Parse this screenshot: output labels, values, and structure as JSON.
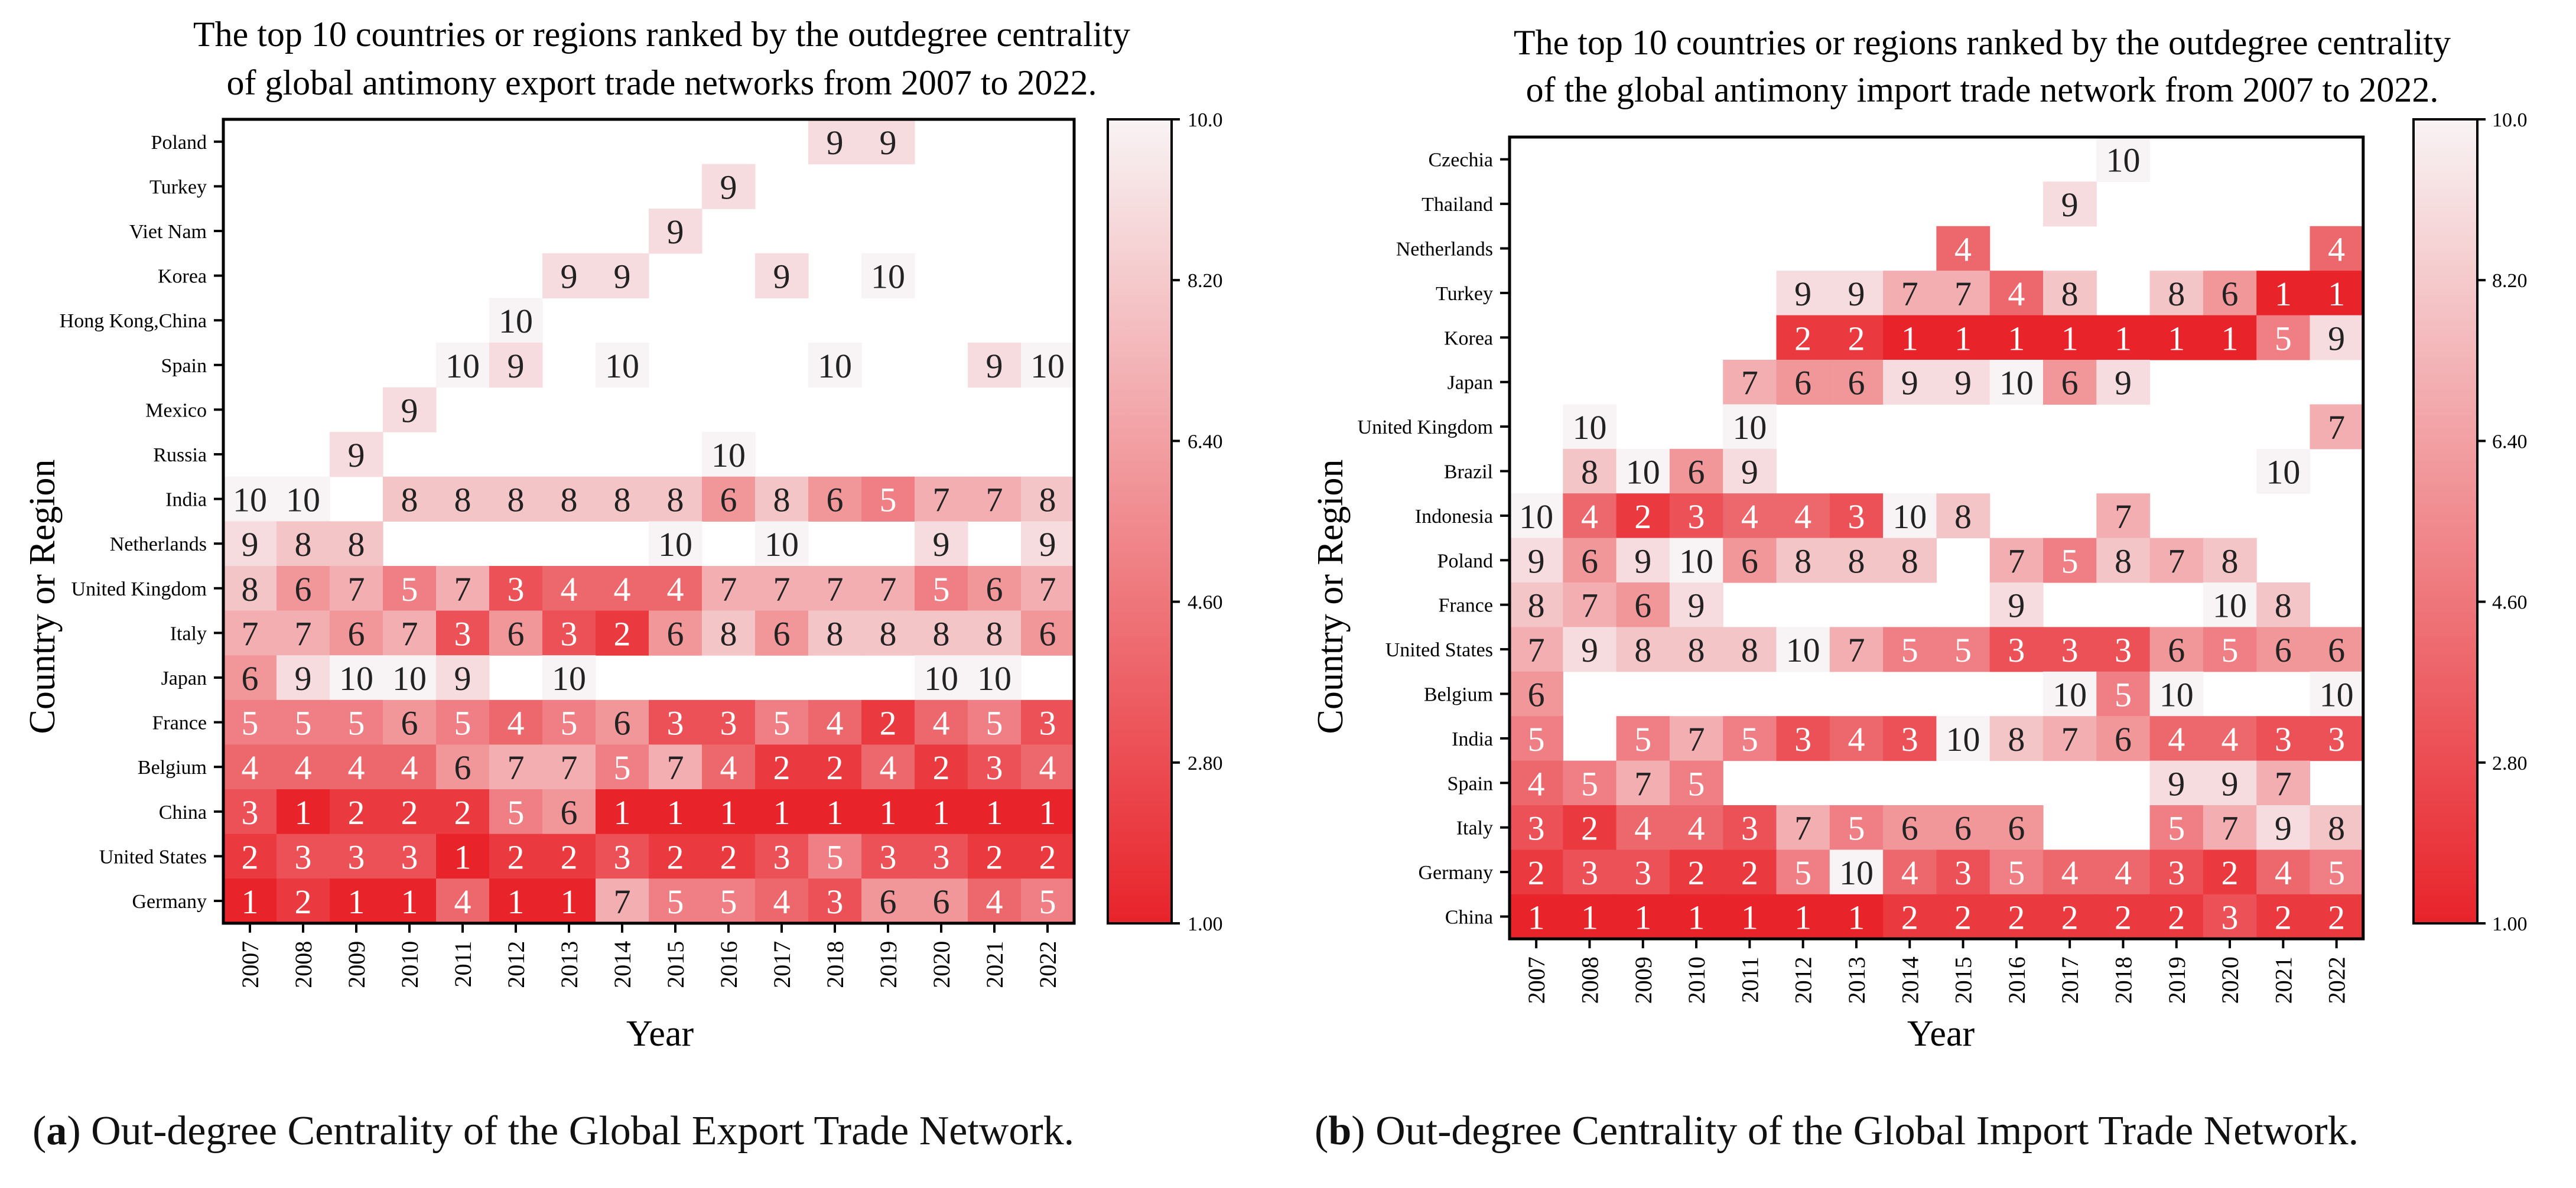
{
  "chart_data": [
    {
      "id": "export",
      "type": "heatmap",
      "title_lines": [
        "The top 10 countries or regions ranked by the outdegree centrality",
        "of global antimony export trade networks from 2007 to 2022."
      ],
      "xlabel": "Year",
      "ylabel": "Country or Region",
      "x": [
        "2007",
        "2008",
        "2009",
        "2010",
        "2011",
        "2012",
        "2013",
        "2014",
        "2015",
        "2016",
        "2017",
        "2018",
        "2019",
        "2020",
        "2021",
        "2022"
      ],
      "y": [
        "Poland",
        "Turkey",
        "Viet Nam",
        "Korea",
        "Hong Kong,China",
        "Spain",
        "Mexico",
        "Russia",
        "India",
        "Netherlands",
        "United Kingdom",
        "Italy",
        "Japan",
        "France",
        "Belgium",
        "China",
        "United States",
        "Germany"
      ],
      "values": [
        [
          null,
          null,
          null,
          null,
          null,
          null,
          null,
          null,
          null,
          null,
          null,
          9,
          9,
          null,
          null,
          null
        ],
        [
          null,
          null,
          null,
          null,
          null,
          null,
          null,
          null,
          null,
          9,
          null,
          null,
          null,
          null,
          null,
          null
        ],
        [
          null,
          null,
          null,
          null,
          null,
          null,
          null,
          null,
          9,
          null,
          null,
          null,
          null,
          null,
          null,
          null
        ],
        [
          null,
          null,
          null,
          null,
          null,
          null,
          9,
          9,
          null,
          null,
          9,
          null,
          10,
          null,
          null,
          null
        ],
        [
          null,
          null,
          null,
          null,
          null,
          10,
          null,
          null,
          null,
          null,
          null,
          null,
          null,
          null,
          null,
          null
        ],
        [
          null,
          null,
          null,
          null,
          10,
          9,
          null,
          10,
          null,
          null,
          null,
          10,
          null,
          null,
          9,
          10
        ],
        [
          null,
          null,
          null,
          9,
          null,
          null,
          null,
          null,
          null,
          null,
          null,
          null,
          null,
          null,
          null,
          null
        ],
        [
          null,
          null,
          9,
          null,
          null,
          null,
          null,
          null,
          null,
          10,
          null,
          null,
          null,
          null,
          null,
          null
        ],
        [
          10,
          10,
          null,
          8,
          8,
          8,
          8,
          8,
          8,
          6,
          8,
          6,
          5,
          7,
          7,
          8
        ],
        [
          9,
          8,
          8,
          null,
          null,
          null,
          null,
          null,
          10,
          null,
          10,
          null,
          null,
          9,
          null,
          9
        ],
        [
          8,
          6,
          7,
          5,
          7,
          3,
          4,
          4,
          4,
          7,
          7,
          7,
          7,
          5,
          6,
          7
        ],
        [
          7,
          7,
          6,
          7,
          3,
          6,
          3,
          2,
          6,
          8,
          6,
          8,
          8,
          8,
          8,
          6
        ],
        [
          6,
          9,
          10,
          10,
          9,
          null,
          10,
          null,
          null,
          null,
          null,
          null,
          null,
          10,
          10,
          null
        ],
        [
          5,
          5,
          5,
          6,
          5,
          4,
          5,
          6,
          3,
          3,
          5,
          4,
          2,
          4,
          5,
          3
        ],
        [
          4,
          4,
          4,
          4,
          6,
          7,
          7,
          5,
          7,
          4,
          2,
          2,
          4,
          2,
          3,
          4
        ],
        [
          3,
          1,
          2,
          2,
          2,
          5,
          6,
          1,
          1,
          1,
          1,
          1,
          1,
          1,
          1,
          1
        ],
        [
          2,
          3,
          3,
          3,
          1,
          2,
          2,
          3,
          2,
          2,
          3,
          5,
          3,
          3,
          2,
          2
        ],
        [
          1,
          2,
          1,
          1,
          4,
          1,
          1,
          7,
          5,
          5,
          4,
          3,
          6,
          6,
          4,
          5
        ]
      ],
      "colorbar": {
        "min": 1,
        "max": 10,
        "ticks": [
          "1.00",
          "2.80",
          "4.60",
          "6.40",
          "8.20",
          "10.0"
        ]
      },
      "caption_letter": "a",
      "caption_text": "Out-degree Centrality of the Global Export Trade Network."
    },
    {
      "id": "import",
      "type": "heatmap",
      "title_lines": [
        "The top 10 countries or regions ranked by the outdegree centrality",
        "of the global antimony import trade network from 2007 to 2022."
      ],
      "xlabel": "Year",
      "ylabel": "Country or Region",
      "x": [
        "2007",
        "2008",
        "2009",
        "2010",
        "2011",
        "2012",
        "2013",
        "2014",
        "2015",
        "2016",
        "2017",
        "2018",
        "2019",
        "2020",
        "2021",
        "2022"
      ],
      "y": [
        "Czechia",
        "Thailand",
        "Netherlands",
        "Turkey",
        "Korea",
        "Japan",
        "United Kingdom",
        "Brazil",
        "Indonesia",
        "Poland",
        "France",
        "United States",
        "Belgium",
        "India",
        "Spain",
        "Italy",
        "Germany",
        "China"
      ],
      "values": [
        [
          null,
          null,
          null,
          null,
          null,
          null,
          null,
          null,
          null,
          null,
          null,
          10,
          null,
          null,
          null,
          null
        ],
        [
          null,
          null,
          null,
          null,
          null,
          null,
          null,
          null,
          null,
          null,
          9,
          null,
          null,
          null,
          null,
          null
        ],
        [
          null,
          null,
          null,
          null,
          null,
          null,
          null,
          null,
          4,
          null,
          null,
          null,
          null,
          null,
          null,
          4
        ],
        [
          null,
          null,
          null,
          null,
          null,
          9,
          9,
          7,
          7,
          4,
          8,
          null,
          8,
          6,
          1,
          1
        ],
        [
          null,
          null,
          null,
          null,
          null,
          2,
          2,
          1,
          1,
          1,
          1,
          1,
          1,
          1,
          5,
          9
        ],
        [
          null,
          null,
          null,
          null,
          7,
          6,
          6,
          9,
          9,
          10,
          6,
          9,
          null,
          null,
          null,
          null
        ],
        [
          null,
          10,
          null,
          null,
          10,
          null,
          null,
          null,
          null,
          null,
          null,
          null,
          null,
          null,
          null,
          7
        ],
        [
          null,
          8,
          10,
          6,
          9,
          null,
          null,
          null,
          null,
          null,
          null,
          null,
          null,
          null,
          10,
          null
        ],
        [
          10,
          4,
          2,
          3,
          4,
          4,
          3,
          10,
          8,
          null,
          null,
          7,
          null,
          null,
          null,
          null
        ],
        [
          9,
          6,
          9,
          10,
          6,
          8,
          8,
          8,
          null,
          7,
          5,
          8,
          7,
          8,
          null,
          null
        ],
        [
          8,
          7,
          6,
          9,
          null,
          null,
          null,
          null,
          null,
          9,
          null,
          null,
          null,
          10,
          8,
          null
        ],
        [
          7,
          9,
          8,
          8,
          8,
          10,
          7,
          5,
          5,
          3,
          3,
          3,
          6,
          5,
          6,
          6
        ],
        [
          6,
          null,
          null,
          null,
          null,
          null,
          null,
          null,
          null,
          null,
          10,
          5,
          10,
          null,
          null,
          10
        ],
        [
          5,
          null,
          5,
          7,
          5,
          3,
          4,
          3,
          10,
          8,
          7,
          6,
          4,
          4,
          3,
          3
        ],
        [
          4,
          5,
          7,
          5,
          null,
          null,
          null,
          null,
          null,
          null,
          null,
          null,
          9,
          9,
          7,
          null
        ],
        [
          3,
          2,
          4,
          4,
          3,
          7,
          5,
          6,
          6,
          6,
          null,
          null,
          5,
          7,
          9,
          8
        ],
        [
          2,
          3,
          3,
          2,
          2,
          5,
          10,
          4,
          3,
          5,
          4,
          4,
          3,
          2,
          4,
          5
        ],
        [
          1,
          1,
          1,
          1,
          1,
          1,
          1,
          2,
          2,
          2,
          2,
          2,
          2,
          3,
          2,
          2
        ]
      ],
      "colorbar": {
        "min": 1,
        "max": 10,
        "ticks": [
          "1.00",
          "2.80",
          "4.60",
          "6.40",
          "8.20",
          "10.0"
        ]
      },
      "caption_letter": "b",
      "caption_text": "Out-degree Centrality of the Global Import Trade Network."
    }
  ],
  "colors": {
    "low": "#e8232a",
    "high": "#f8f3f4"
  }
}
